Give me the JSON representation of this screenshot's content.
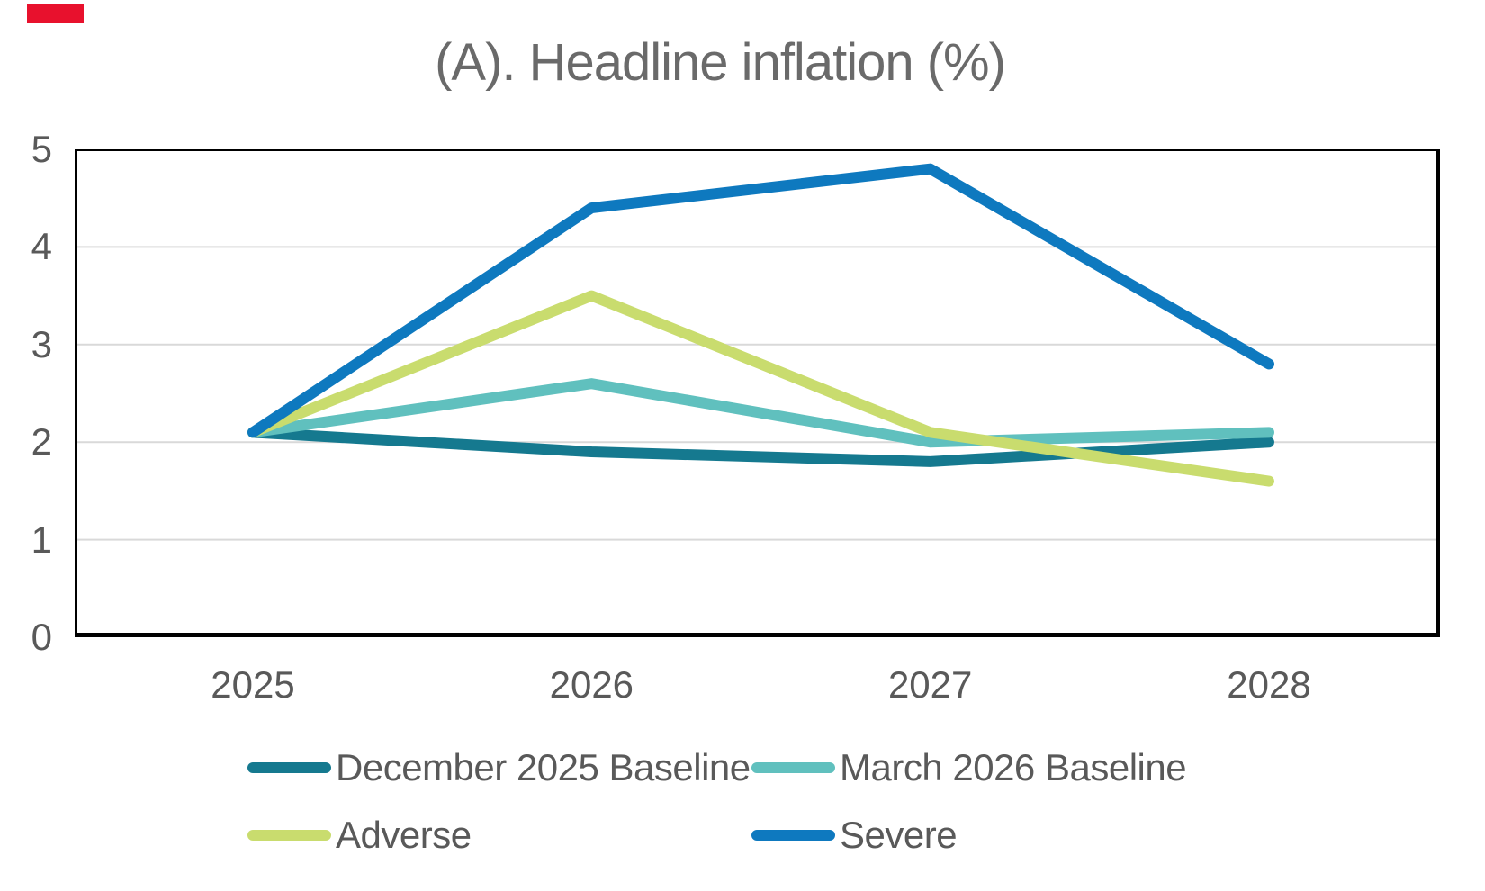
{
  "corner_mark": {
    "color": "#e8112d"
  },
  "colors": {
    "axis_text": "#595959",
    "title_text": "#6a6a6a",
    "gridline": "#d9d9d9",
    "plot_border": "#000000",
    "background": "#ffffff"
  },
  "chart_data": {
    "type": "line",
    "title": "(A). Headline inflation (%)",
    "xlabel": "",
    "ylabel": "",
    "categories": [
      "2025",
      "2026",
      "2027",
      "2028"
    ],
    "series": [
      {
        "name": "December 2025 Baseline",
        "color": "#15798f",
        "values": [
          2.1,
          1.9,
          1.8,
          2.0
        ]
      },
      {
        "name": "March 2026 Baseline",
        "color": "#60c0be",
        "values": [
          2.1,
          2.6,
          2.0,
          2.1
        ]
      },
      {
        "name": "Adverse",
        "color": "#c9dc6e",
        "values": [
          2.1,
          3.5,
          2.1,
          1.6
        ]
      },
      {
        "name": "Severe",
        "color": "#0e79bf",
        "values": [
          2.1,
          4.4,
          4.8,
          2.8
        ]
      }
    ],
    "ylim": [
      0,
      5
    ],
    "y_ticks": [
      "0",
      "1",
      "2",
      "3",
      "4",
      "5"
    ],
    "gridline_values": [
      1,
      2,
      3,
      4
    ],
    "grid": "horizontal",
    "legend_position": "bottom",
    "legend_rows": [
      [
        "December 2025 Baseline",
        "March 2026 Baseline"
      ],
      [
        "Adverse",
        "Severe"
      ]
    ]
  }
}
